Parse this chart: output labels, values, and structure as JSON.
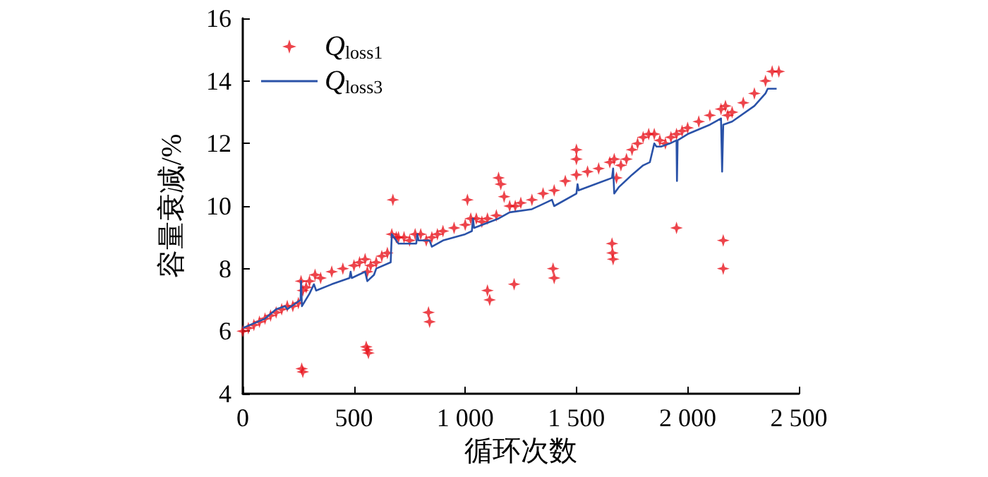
{
  "chart_data": {
    "type": "scatter",
    "xlabel": "循环次数",
    "ylabel": "容量衰减/%",
    "xlim": [
      0,
      2500
    ],
    "ylim": [
      4,
      16
    ],
    "xticks": [
      0,
      500,
      {
        "value": 1000,
        "label": "1 000"
      },
      {
        "value": 1500,
        "label": "1 500"
      },
      {
        "value": 2000,
        "label": "2 000"
      },
      {
        "value": 2500,
        "label": "2 500"
      }
    ],
    "yticks": [
      4,
      6,
      8,
      10,
      12,
      14,
      16
    ],
    "grid": false,
    "legend": "top left",
    "series": [
      {
        "name": "Q$_{loss1}$",
        "type": "scatter",
        "marker": "cross",
        "color": "#e8151e",
        "x": [
          0,
          25,
          50,
          75,
          100,
          125,
          150,
          175,
          200,
          225,
          250,
          262,
          270,
          285,
          300,
          325,
          350,
          400,
          450,
          500,
          525,
          550,
          560,
          575,
          600,
          625,
          650,
          670,
          675,
          690,
          700,
          725,
          750,
          775,
          800,
          825,
          850,
          875,
          900,
          950,
          1000,
          1010,
          1025,
          1050,
          1075,
          1100,
          1140,
          1150,
          1160,
          1175,
          1200,
          1225,
          1250,
          1300,
          1350,
          1400,
          1450,
          1500,
          1500,
          1500,
          1550,
          1600,
          1650,
          1670,
          1680,
          1700,
          1725,
          1750,
          1775,
          1800,
          1825,
          1850,
          1875,
          1900,
          1925,
          1950,
          1975,
          2000,
          2050,
          2100,
          2150,
          2170,
          2180,
          2200,
          2250,
          2300,
          2350,
          2380,
          2410,
          265,
          270,
          555,
          560,
          565,
          835,
          840,
          1100,
          1110,
          1220,
          1395,
          1400,
          1660,
          1662,
          1665,
          1950,
          2160,
          2160
        ],
        "values": [
          6.0,
          6.1,
          6.2,
          6.3,
          6.4,
          6.5,
          6.6,
          6.7,
          6.8,
          6.8,
          6.9,
          7.6,
          7.3,
          7.4,
          7.6,
          7.8,
          7.7,
          7.9,
          8.0,
          8.1,
          8.2,
          8.3,
          7.9,
          8.1,
          8.2,
          8.4,
          8.5,
          9.1,
          10.2,
          9.0,
          9.0,
          9.0,
          8.9,
          9.1,
          9.1,
          8.9,
          9.0,
          9.1,
          9.2,
          9.3,
          9.4,
          10.2,
          9.6,
          9.6,
          9.5,
          9.6,
          9.7,
          10.9,
          10.7,
          10.3,
          10.0,
          10.0,
          10.1,
          10.2,
          10.4,
          10.5,
          10.8,
          11.0,
          11.8,
          11.5,
          11.1,
          11.2,
          11.4,
          11.5,
          10.9,
          11.3,
          11.5,
          11.8,
          12.0,
          12.2,
          12.3,
          12.3,
          12.1,
          12.0,
          12.2,
          12.3,
          12.4,
          12.5,
          12.7,
          12.9,
          13.1,
          13.2,
          12.9,
          13.0,
          13.3,
          13.6,
          14.0,
          14.3,
          14.3,
          4.8,
          4.7,
          5.5,
          5.4,
          5.3,
          6.6,
          6.3,
          7.3,
          7.0,
          7.5,
          8.0,
          7.7,
          8.8,
          8.5,
          8.3,
          9.3,
          8.9,
          8.0
        ]
      },
      {
        "name": "Q$_{loss3}$",
        "type": "line",
        "marker": "none",
        "line_style": "solid",
        "color": "#2a52a8",
        "x": [
          0,
          100,
          150,
          190,
          200,
          260,
          262,
          266,
          300,
          320,
          330,
          400,
          480,
          485,
          490,
          550,
          560,
          590,
          600,
          665,
          670,
          700,
          780,
          785,
          790,
          840,
          850,
          900,
          1000,
          1030,
          1035,
          1040,
          1150,
          1200,
          1300,
          1390,
          1400,
          1500,
          1505,
          1510,
          1660,
          1665,
          1670,
          1690,
          1750,
          1800,
          1830,
          1850,
          1860,
          1880,
          1920,
          1950,
          1952,
          1955,
          2000,
          2100,
          2150,
          2155,
          2160,
          2200,
          2300,
          2350,
          2360,
          2400
        ],
        "values": [
          6.1,
          6.4,
          6.7,
          6.8,
          6.7,
          7.0,
          7.6,
          6.8,
          7.2,
          7.5,
          7.3,
          7.5,
          7.7,
          7.9,
          7.7,
          7.9,
          7.6,
          7.8,
          8.0,
          8.2,
          9.1,
          8.8,
          8.8,
          9.1,
          8.9,
          8.9,
          8.7,
          8.9,
          9.1,
          9.2,
          9.6,
          9.3,
          9.6,
          9.8,
          9.9,
          10.2,
          10.0,
          10.4,
          10.7,
          10.5,
          10.9,
          11.2,
          10.4,
          10.6,
          11.0,
          11.3,
          11.4,
          12.0,
          11.9,
          11.9,
          12.0,
          12.1,
          10.8,
          12.1,
          12.3,
          12.6,
          12.8,
          11.1,
          12.6,
          12.7,
          13.2,
          13.6,
          13.75,
          13.75
        ]
      }
    ]
  }
}
